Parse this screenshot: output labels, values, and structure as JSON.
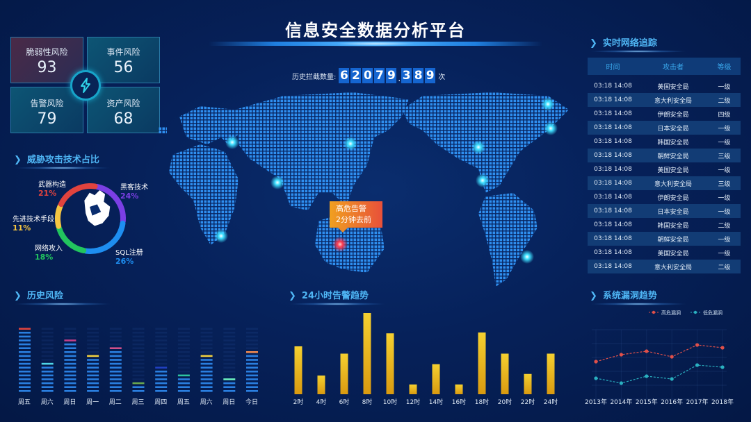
{
  "header": {
    "title": "信息安全数据分析平台"
  },
  "risk_cards": [
    {
      "label": "脆弱性风险",
      "value": "93"
    },
    {
      "label": "事件风险",
      "value": "56"
    },
    {
      "label": "告警风险",
      "value": "79"
    },
    {
      "label": "资产风险",
      "value": "68"
    }
  ],
  "hub_icon": "lightning-bolt-icon",
  "counter": {
    "label": "历史拦截数量:",
    "digits": [
      "6",
      "2",
      "0",
      "7",
      "9",
      ".",
      "3",
      "8",
      "9"
    ],
    "unit": "次"
  },
  "threat": {
    "title": "威胁攻击技术占比",
    "slices": [
      {
        "label": "黑客技术",
        "pct": "24%",
        "value": 24,
        "color": "#7b3fe4"
      },
      {
        "label": "SQL注册",
        "pct": "26%",
        "value": 26,
        "color": "#1e8ef0"
      },
      {
        "label": "网络攻入",
        "pct": "18%",
        "value": 18,
        "color": "#22c55e"
      },
      {
        "label": "先进技术手段",
        "pct": "11%",
        "value": 11,
        "color": "#f5c542"
      },
      {
        "label": "武器构造",
        "pct": "21%",
        "value": 21,
        "color": "#e0433e"
      }
    ]
  },
  "map": {
    "alert": {
      "line1": "高危告警",
      "line2": "2分钟去前"
    },
    "point_color": "#3fe0ff",
    "alert_color": "#ff3b4f"
  },
  "tracking": {
    "title": "实时网络追踪",
    "columns": [
      "时间",
      "攻击者",
      "等级"
    ],
    "rows": [
      [
        "03:18 14:08",
        "美国安全局",
        "一级"
      ],
      [
        "03:18 14:08",
        "意大利安全局",
        "二级"
      ],
      [
        "03:18 14:08",
        "伊朗安全局",
        "四级"
      ],
      [
        "03:18 14:08",
        "日本安全局",
        "一级"
      ],
      [
        "03:18 14:08",
        "韩国安全局",
        "一级"
      ],
      [
        "03:18 14:08",
        "朝鲜安全局",
        "三级"
      ],
      [
        "03:18 14:08",
        "美国安全局",
        "一级"
      ],
      [
        "03:18 14:08",
        "意大利安全局",
        "三级"
      ],
      [
        "03:18 14:08",
        "伊朗安全局",
        "一级"
      ],
      [
        "03:18 14:08",
        "日本安全局",
        "一级"
      ],
      [
        "03:18 14:08",
        "韩国安全局",
        "二级"
      ],
      [
        "03:18 14:08",
        "朝鲜安全局",
        "一级"
      ],
      [
        "03:18 14:08",
        "美国安全局",
        "一级"
      ],
      [
        "03:18 14:08",
        "意大利安全局",
        "二级"
      ]
    ]
  },
  "history": {
    "title": "历史风险"
  },
  "trend24": {
    "title": "24小时告警趋势"
  },
  "vuln": {
    "title": "系统漏洞趋势"
  },
  "chart_data": [
    {
      "type": "bar",
      "title": "历史风险",
      "categories": [
        "周五",
        "周六",
        "周日",
        "周一",
        "周二",
        "周三",
        "周四",
        "周五",
        "周六",
        "周日",
        "今日"
      ],
      "values": [
        17,
        8,
        14,
        10,
        12,
        3,
        7,
        5,
        10,
        4,
        11
      ],
      "ylim": [
        0,
        17
      ],
      "cap_colors": [
        "#e0433e",
        "#4fd6e8",
        "#c2408a",
        "#f0d040",
        "#d0508a",
        "#6aa84f",
        "#2040c0",
        "#2ec4a0",
        "#f0d040",
        "#6af0c0",
        "#f08a50"
      ],
      "bar_color": "#2a7fe0"
    },
    {
      "type": "bar",
      "title": "24小时告警趋势",
      "categories": [
        "2时",
        "4时",
        "6时",
        "8时",
        "10时",
        "12时",
        "14时",
        "16时",
        "18时",
        "20时",
        "22时",
        "24时"
      ],
      "values": [
        59,
        23,
        50,
        100,
        75,
        12,
        37,
        12,
        76,
        50,
        25,
        50
      ],
      "ylim": [
        0,
        100
      ],
      "bar_color": "#f2c21b"
    },
    {
      "type": "line",
      "title": "系统漏洞趋势",
      "x": [
        "2013年",
        "2014年",
        "2015年",
        "2016年",
        "2017年",
        "2018年"
      ],
      "series": [
        {
          "name": "高危漏洞",
          "values": [
            54,
            64,
            69,
            61,
            78,
            74
          ],
          "color": "#e0504a"
        },
        {
          "name": "低危漏洞",
          "values": [
            30,
            23,
            33,
            29,
            49,
            46
          ],
          "color": "#2ab0c0"
        }
      ],
      "ylim": [
        0,
        100
      ],
      "grid": true,
      "legend": "top-right"
    }
  ]
}
